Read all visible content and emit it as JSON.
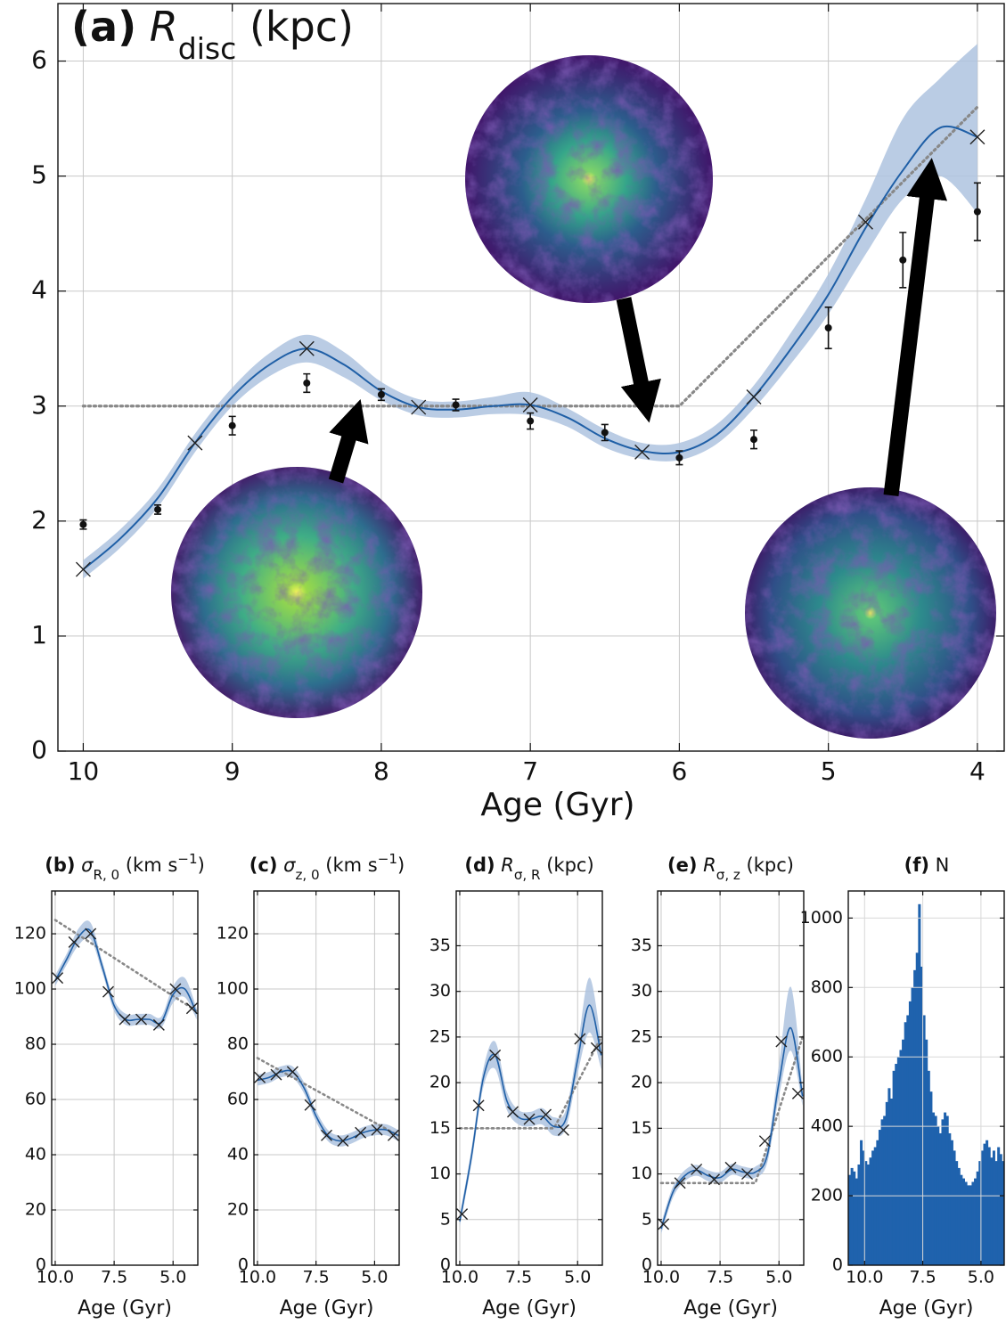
{
  "chart_data": [
    {
      "type": "line",
      "title": [
        {
          "text": "(a)",
          "style": "bold"
        },
        {
          "text": " R",
          "style": "italic"
        },
        {
          "text": "disc",
          "style": "sub"
        },
        {
          "text": " (kpc)",
          "style": "normal"
        }
      ],
      "xlabel": "Age (Gyr)",
      "xlim": [
        10.17,
        3.82
      ],
      "ylim": [
        0,
        6.5
      ],
      "xticks": [
        10,
        9,
        8,
        7,
        6,
        5,
        4
      ],
      "yticks": [
        0,
        1,
        2,
        3,
        4,
        5,
        6
      ],
      "grid": true,
      "fit": {
        "color": "#1f5fa6",
        "band_color": "#aec3df",
        "x": [
          10,
          9.75,
          9.5,
          9.25,
          9,
          8.75,
          8.5,
          8.25,
          8,
          7.75,
          7.5,
          7.25,
          7,
          6.75,
          6.5,
          6.25,
          6,
          5.75,
          5.5,
          5.25,
          5,
          4.75,
          4.5,
          4.25,
          4
        ],
        "values": [
          1.58,
          1.85,
          2.2,
          2.68,
          3.08,
          3.36,
          3.5,
          3.36,
          3.13,
          2.99,
          2.97,
          3.0,
          3.01,
          2.9,
          2.72,
          2.61,
          2.6,
          2.75,
          3.08,
          3.5,
          3.97,
          4.55,
          5.05,
          5.42,
          5.34
        ],
        "band_lower": [
          1.5,
          1.77,
          2.12,
          2.6,
          3.0,
          3.26,
          3.38,
          3.25,
          3.05,
          2.92,
          2.9,
          2.93,
          2.92,
          2.82,
          2.64,
          2.54,
          2.53,
          2.67,
          2.98,
          3.37,
          3.8,
          4.32,
          4.8,
          5.0,
          4.68
        ],
        "band_upper": [
          1.66,
          1.93,
          2.28,
          2.76,
          3.16,
          3.46,
          3.62,
          3.47,
          3.21,
          3.06,
          3.04,
          3.08,
          3.12,
          2.98,
          2.8,
          2.68,
          2.68,
          2.84,
          3.18,
          3.64,
          4.15,
          4.8,
          5.5,
          5.85,
          6.15
        ]
      },
      "knots": {
        "color": "#222",
        "x": [
          10,
          9.25,
          8.5,
          7.75,
          7,
          6.25,
          5.5,
          4.75,
          4
        ],
        "values": [
          1.58,
          2.68,
          3.5,
          2.99,
          3.01,
          2.6,
          3.08,
          4.6,
          5.34
        ]
      },
      "trend": {
        "color": "#888",
        "x": [
          10,
          6,
          4
        ],
        "values": [
          3,
          3,
          5.6
        ]
      },
      "measurements": {
        "color": "#111",
        "x": [
          10,
          9.5,
          9,
          8.5,
          8,
          7.5,
          7,
          6.5,
          6,
          5.5,
          5,
          4.5,
          4
        ],
        "values": [
          1.97,
          2.1,
          2.83,
          3.2,
          3.1,
          3.01,
          2.87,
          2.77,
          2.55,
          2.71,
          3.68,
          4.27,
          4.69
        ],
        "errors": [
          0.04,
          0.04,
          0.08,
          0.08,
          0.05,
          0.05,
          0.07,
          0.07,
          0.06,
          0.08,
          0.18,
          0.24,
          0.25
        ]
      }
    },
    {
      "type": "line",
      "title": [
        {
          "text": "(b)",
          "style": "bold"
        },
        {
          "text": " σ",
          "style": "italic"
        },
        {
          "text": "R, 0",
          "style": "sub"
        },
        {
          "text": " (km s",
          "style": "normal"
        },
        {
          "text": "−1",
          "style": "sup"
        },
        {
          "text": ")",
          "style": "normal"
        }
      ],
      "xlabel": "Age (Gyr)",
      "xlim": [
        10.15,
        3.95
      ],
      "ylim": [
        0,
        135.5
      ],
      "xticks": [
        {
          "value": 10,
          "label": "10.0"
        },
        7.5,
        {
          "value": 5,
          "label": "5.0"
        }
      ],
      "yticks": [
        0,
        20,
        40,
        60,
        80,
        100,
        120
      ],
      "grid": true,
      "fit": {
        "color": "#1f5fa6",
        "band_color": "#aec3df",
        "x": [
          10,
          9.5,
          9,
          8.5,
          8,
          7.5,
          7,
          6.5,
          6,
          5.5,
          5,
          4.5,
          4
        ],
        "values": [
          103,
          111,
          119,
          121,
          108,
          94,
          89,
          89,
          89,
          88,
          98,
          100,
          91
        ],
        "band_lower": [
          101,
          109,
          116,
          118,
          106,
          92,
          87,
          87,
          87,
          86,
          95,
          97,
          89
        ],
        "band_upper": [
          105,
          113,
          122,
          124,
          110,
          96,
          91,
          91,
          91,
          90,
          101,
          104,
          93
        ]
      },
      "knots": {
        "color": "#222",
        "x": [
          9.9,
          9.2,
          8.5,
          7.75,
          7.05,
          6.35,
          5.6,
          4.9,
          4.2
        ],
        "values": [
          104,
          117,
          120,
          99,
          89,
          89,
          87,
          100,
          93
        ]
      },
      "trend": {
        "color": "#888",
        "x": [
          10,
          4
        ],
        "values": [
          125,
          92
        ]
      }
    },
    {
      "type": "line",
      "title": [
        {
          "text": "(c)",
          "style": "bold"
        },
        {
          "text": " σ",
          "style": "italic"
        },
        {
          "text": "z, 0",
          "style": "sub"
        },
        {
          "text": " (km s",
          "style": "normal"
        },
        {
          "text": "−1",
          "style": "sup"
        },
        {
          "text": ")",
          "style": "normal"
        }
      ],
      "xlabel": "Age (Gyr)",
      "xlim": [
        10.15,
        3.95
      ],
      "ylim": [
        0,
        135.5
      ],
      "xticks": [
        {
          "value": 10,
          "label": "10.0"
        },
        7.5,
        {
          "value": 5,
          "label": "5.0"
        }
      ],
      "yticks": [
        0,
        20,
        40,
        60,
        80,
        100,
        120
      ],
      "grid": true,
      "fit": {
        "color": "#1f5fa6",
        "band_color": "#aec3df",
        "x": [
          10,
          9.5,
          9,
          8.5,
          8,
          7.5,
          7,
          6.5,
          6,
          5.5,
          5,
          4.5,
          4
        ],
        "values": [
          67,
          68,
          70,
          70,
          64,
          54,
          47,
          45,
          46,
          48,
          49,
          49,
          47
        ],
        "band_lower": [
          65,
          66,
          68,
          68,
          62,
          52,
          45,
          43,
          44,
          46,
          47,
          47,
          45
        ],
        "band_upper": [
          69,
          70,
          72,
          72,
          66,
          56,
          49,
          47,
          48,
          50,
          51,
          51,
          49
        ]
      },
      "knots": {
        "color": "#222",
        "x": [
          9.9,
          9.2,
          8.5,
          7.75,
          7.05,
          6.35,
          5.6,
          4.9,
          4.2
        ],
        "values": [
          68,
          69,
          70,
          58,
          47,
          45,
          48,
          49,
          47
        ]
      },
      "trend": {
        "color": "#888",
        "x": [
          10,
          4
        ],
        "values": [
          75,
          47
        ]
      }
    },
    {
      "type": "line",
      "title": [
        {
          "text": "(d)",
          "style": "bold"
        },
        {
          "text": " R",
          "style": "italic"
        },
        {
          "text": "σ, R",
          "style": "sub"
        },
        {
          "text": " (kpc)",
          "style": "normal"
        }
      ],
      "xlabel": "Age (Gyr)",
      "xlim": [
        10.15,
        3.95
      ],
      "ylim": [
        0,
        41
      ],
      "xticks": [
        {
          "value": 10,
          "label": "10.0"
        },
        7.5,
        {
          "value": 5,
          "label": "5.0"
        }
      ],
      "yticks": [
        0,
        5,
        10,
        15,
        20,
        25,
        30,
        35
      ],
      "grid": true,
      "fit": {
        "color": "#1f5fa6",
        "band_color": "#aec3df",
        "x": [
          10,
          9.5,
          9,
          8.5,
          8,
          7.5,
          7,
          6.5,
          6,
          5.5,
          5,
          4.5,
          4
        ],
        "values": [
          4.8,
          12,
          20.5,
          23,
          18,
          16.2,
          16,
          16.3,
          15.2,
          16,
          22.5,
          28.5,
          23
        ],
        "band_lower": [
          4.2,
          11.2,
          19.5,
          21.5,
          17,
          15.4,
          15.2,
          15.4,
          14.2,
          15,
          21,
          25.5,
          21.5
        ],
        "band_upper": [
          5.4,
          12.8,
          21.5,
          24.5,
          19,
          17,
          16.8,
          17.2,
          16.2,
          17,
          24,
          31.5,
          24.5
        ]
      },
      "knots": {
        "color": "#222",
        "x": [
          9.9,
          9.2,
          8.5,
          7.75,
          7.05,
          6.35,
          5.6,
          4.9,
          4.2
        ],
        "values": [
          5.6,
          17.5,
          23,
          16.8,
          16,
          16.5,
          14.8,
          24.8,
          23.8
        ]
      },
      "trend": {
        "color": "#888",
        "x": [
          10,
          6,
          4
        ],
        "values": [
          15,
          15,
          25
        ]
      }
    },
    {
      "type": "line",
      "title": [
        {
          "text": "(e)",
          "style": "bold"
        },
        {
          "text": " R",
          "style": "italic"
        },
        {
          "text": "σ, z",
          "style": "sub"
        },
        {
          "text": " (kpc)",
          "style": "normal"
        }
      ],
      "xlabel": "Age (Gyr)",
      "xlim": [
        10.15,
        3.95
      ],
      "ylim": [
        0,
        41
      ],
      "xticks": [
        {
          "value": 10,
          "label": "10.0"
        },
        7.5,
        {
          "value": 5,
          "label": "5.0"
        }
      ],
      "yticks": [
        0,
        5,
        10,
        15,
        20,
        25,
        30,
        35
      ],
      "grid": true,
      "fit": {
        "color": "#1f5fa6",
        "band_color": "#aec3df",
        "x": [
          10,
          9.5,
          9,
          8.5,
          8,
          7.5,
          7,
          6.5,
          6,
          5.5,
          5,
          4.5,
          4
        ],
        "values": [
          4,
          8,
          9.8,
          10.4,
          9.8,
          9.6,
          10.5,
          10.2,
          10.2,
          12,
          20,
          26,
          18.5
        ],
        "band_lower": [
          3.4,
          7.4,
          9.2,
          9.8,
          9.2,
          9.0,
          9.9,
          9.6,
          9.6,
          11.2,
          18.5,
          23.5,
          17.5
        ],
        "band_upper": [
          4.6,
          8.6,
          10.4,
          11,
          10.4,
          10.2,
          11.1,
          10.8,
          10.8,
          12.8,
          22,
          30.5,
          19.5
        ]
      },
      "knots": {
        "color": "#222",
        "x": [
          9.9,
          9.2,
          8.5,
          7.75,
          7.05,
          6.35,
          5.6,
          4.9,
          4.2
        ],
        "values": [
          4.5,
          9,
          10.5,
          9.4,
          10.7,
          10,
          13.6,
          24.5,
          18.8
        ]
      },
      "trend": {
        "color": "#888",
        "x": [
          10,
          6,
          4
        ],
        "values": [
          9,
          9,
          25
        ]
      }
    },
    {
      "type": "histogram",
      "title": [
        {
          "text": "(f)",
          "style": "bold"
        },
        {
          "text": " N",
          "style": "normal"
        }
      ],
      "xlabel": "Age (Gyr)",
      "xlim": [
        10.7,
        4.0
      ],
      "ylim": [
        0,
        1078
      ],
      "xticks": [
        {
          "value": 10,
          "label": "10.0"
        },
        7.5,
        {
          "value": 5,
          "label": "5.0"
        }
      ],
      "yticks": [
        0,
        200,
        400,
        600,
        800,
        1000
      ],
      "grid": true,
      "color": "#1f62ad",
      "bins": [
        10.7,
        10.6,
        10.5,
        10.4,
        10.3,
        10.2,
        10.1,
        10.0,
        9.9,
        9.8,
        9.7,
        9.6,
        9.5,
        9.4,
        9.3,
        9.2,
        9.1,
        9.0,
        8.9,
        8.8,
        8.7,
        8.6,
        8.5,
        8.4,
        8.3,
        8.2,
        8.1,
        8.0,
        7.9,
        7.8,
        7.7,
        7.6,
        7.5,
        7.4,
        7.3,
        7.2,
        7.1,
        7.0,
        6.9,
        6.8,
        6.7,
        6.6,
        6.5,
        6.4,
        6.3,
        6.2,
        6.1,
        6.0,
        5.9,
        5.8,
        5.7,
        5.6,
        5.5,
        5.4,
        5.3,
        5.2,
        5.1,
        5.0,
        4.9,
        4.8,
        4.7,
        4.6,
        4.5,
        4.4,
        4.3,
        4.2,
        4.1,
        4.0
      ],
      "counts": [
        260,
        280,
        270,
        250,
        290,
        360,
        330,
        300,
        290,
        310,
        330,
        340,
        360,
        390,
        420,
        430,
        470,
        510,
        480,
        560,
        580,
        600,
        620,
        650,
        700,
        720,
        760,
        800,
        850,
        900,
        1040,
        860,
        720,
        650,
        560,
        500,
        440,
        430,
        400,
        380,
        420,
        440,
        430,
        380,
        360,
        330,
        300,
        280,
        260,
        250,
        240,
        230,
        230,
        240,
        250,
        270,
        300,
        330,
        350,
        360,
        340,
        310,
        330,
        300,
        340,
        320,
        300
      ]
    }
  ]
}
